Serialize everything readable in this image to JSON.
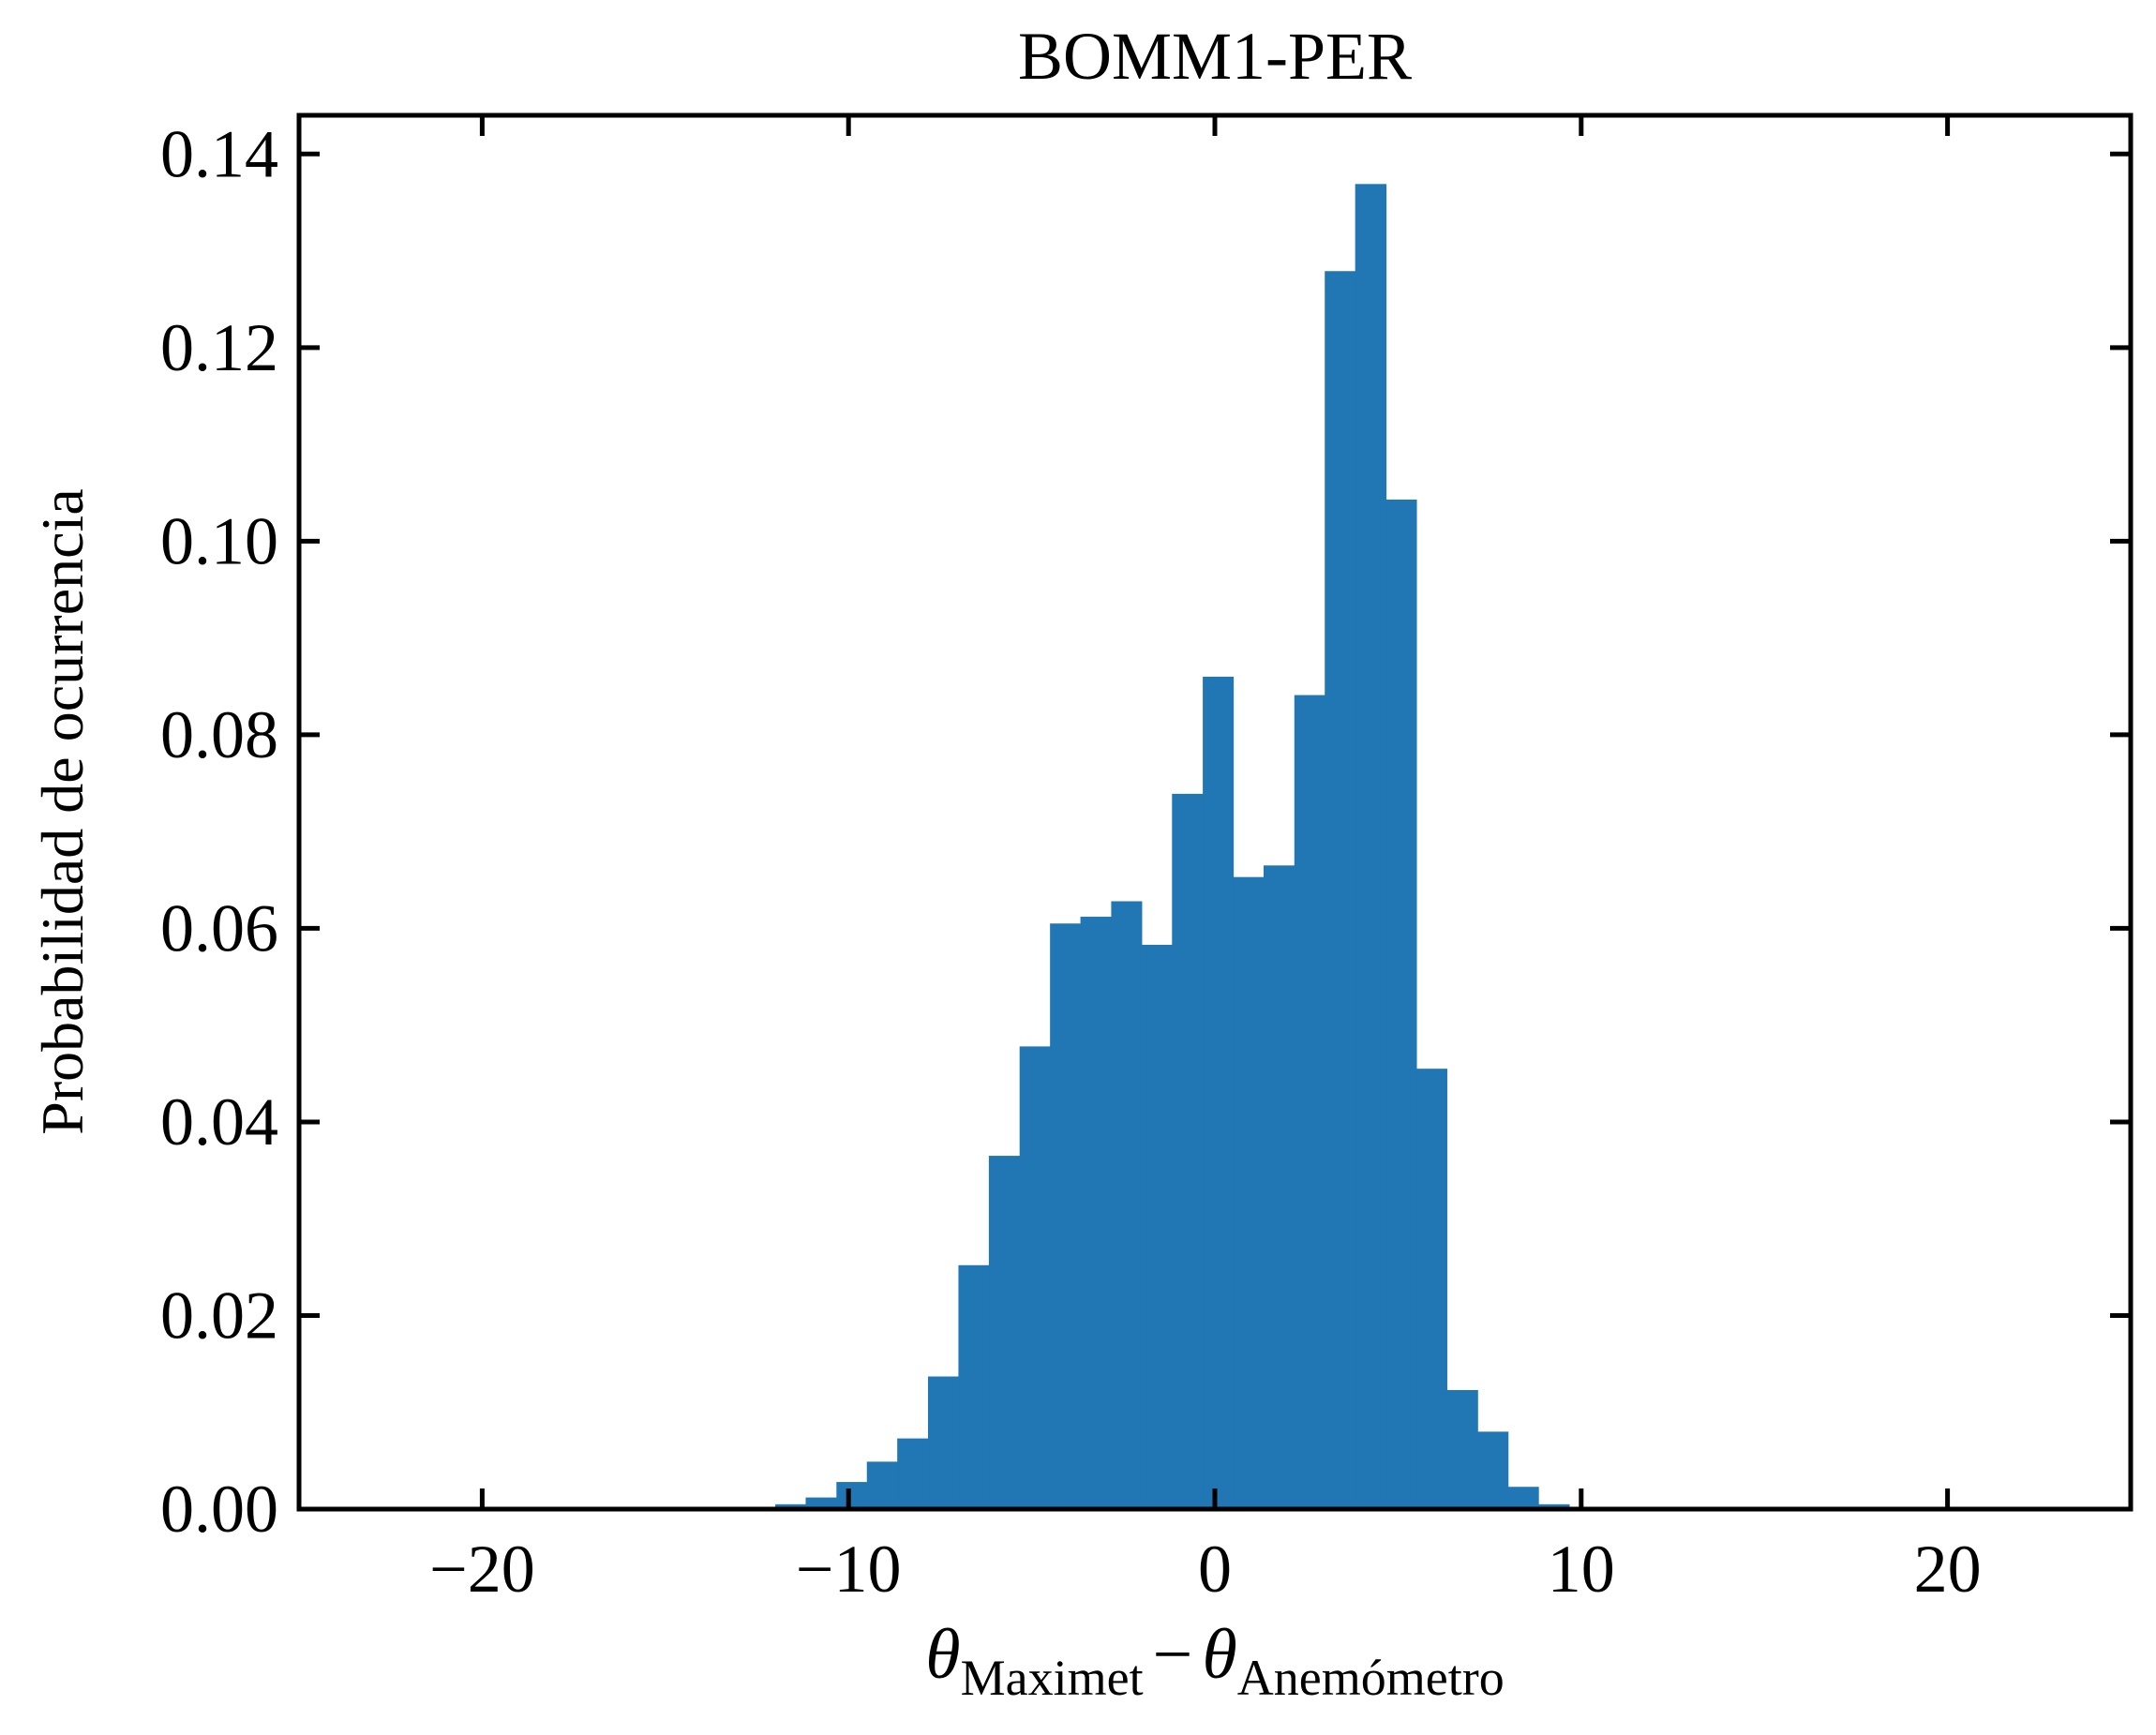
{
  "chart_data": {
    "type": "bar",
    "title": "BOMM1-PER",
    "ylabel": "Probabilidad de ocurrencia",
    "xlabel": {
      "theta_symbol": "θ",
      "sub1": "Maximet",
      "minus": "−",
      "sub2": "Anemómetro"
    },
    "xlim": [
      -25,
      25
    ],
    "ylim": [
      0,
      0.144
    ],
    "xticks": [
      -20,
      -10,
      0,
      10,
      20
    ],
    "xtick_labels": [
      "−20",
      "−10",
      "0",
      "10",
      "20"
    ],
    "yticks": [
      0.0,
      0.02,
      0.04,
      0.06,
      0.08,
      0.1,
      0.12,
      0.14
    ],
    "ytick_labels": [
      "0.00",
      "0.02",
      "0.04",
      "0.06",
      "0.08",
      "0.10",
      "0.12",
      "0.14"
    ],
    "bin_edges": [
      -12.0,
      -11.17,
      -10.33,
      -9.5,
      -8.67,
      -7.83,
      -7.0,
      -6.17,
      -5.33,
      -4.5,
      -3.67,
      -2.83,
      -2.0,
      -1.17,
      -0.33,
      0.5,
      1.33,
      2.17,
      3.0,
      3.83,
      4.67,
      5.5,
      6.33,
      7.17,
      8.0,
      8.83,
      9.67,
      10.5
    ],
    "values": [
      0.0005,
      0.0012,
      0.0028,
      0.0049,
      0.0073,
      0.0137,
      0.0252,
      0.0365,
      0.0478,
      0.0605,
      0.0612,
      0.0628,
      0.0583,
      0.0739,
      0.086,
      0.0653,
      0.0665,
      0.0841,
      0.1279,
      0.1369,
      0.1043,
      0.0455,
      0.0123,
      0.008,
      0.0023,
      0.0005,
      0.0002
    ],
    "bar_color": "#2077b4",
    "grid": false,
    "legend": "none"
  }
}
